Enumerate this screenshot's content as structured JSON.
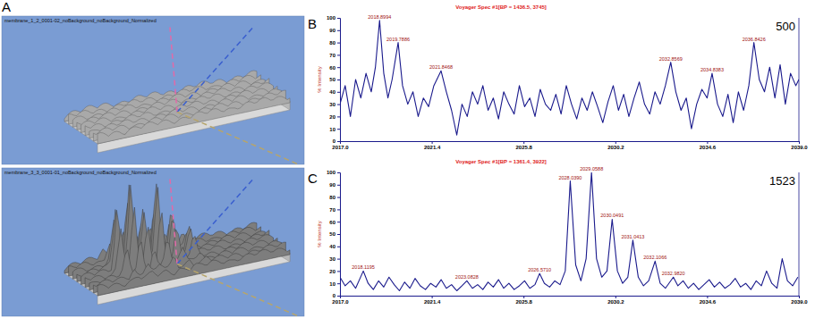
{
  "panel_a": {
    "label": "A",
    "images": [
      {
        "caption": "membrane_1_2_0001-02_noBackground_noBackground_Normalized"
      },
      {
        "caption": "membrane_3_3_0001-01_noBackground_noBackground_Normalized"
      }
    ]
  },
  "chart_data": [
    {
      "type": "line",
      "panel_label": "B",
      "title": "Voyager Spec #1[BP = 1436.5, 3745]",
      "ylabel": "% Intensity",
      "counts_label": 500,
      "color": "#1a1a8c",
      "xlim": [
        2017,
        2039
      ],
      "xticks": [
        {
          "value": 2017,
          "label": "2017.0"
        },
        2021.4,
        2025.8,
        2030.2,
        2034.6,
        {
          "value": 2039,
          "label": "2039.0"
        }
      ],
      "ylim": [
        0,
        100
      ],
      "yticks": [
        0,
        10,
        20,
        30,
        40,
        50,
        60,
        70,
        80,
        90,
        100
      ],
      "x": [
        2017.0,
        2017.25,
        2017.5,
        2017.75,
        2018.0,
        2018.25,
        2018.5,
        2018.7,
        2018.8994,
        2019.1,
        2019.3,
        2019.5,
        2019.7886,
        2020.0,
        2020.25,
        2020.5,
        2020.75,
        2021.0,
        2021.25,
        2021.5,
        2021.8468,
        2022.1,
        2022.35,
        2022.6,
        2022.85,
        2023.1,
        2023.35,
        2023.6,
        2023.85,
        2024.1,
        2024.35,
        2024.6,
        2024.85,
        2025.1,
        2025.35,
        2025.6,
        2025.85,
        2026.1,
        2026.35,
        2026.6,
        2026.85,
        2027.1,
        2027.35,
        2027.6,
        2027.85,
        2028.1,
        2028.35,
        2028.6,
        2028.85,
        2029.1,
        2029.35,
        2029.6,
        2029.85,
        2030.1,
        2030.35,
        2030.6,
        2030.85,
        2031.1,
        2031.35,
        2031.6,
        2031.85,
        2032.1,
        2032.35,
        2032.6,
        2032.8569,
        2033.1,
        2033.35,
        2033.6,
        2033.85,
        2034.1,
        2034.35,
        2034.6,
        2034.8383,
        2035.1,
        2035.35,
        2035.6,
        2035.85,
        2036.1,
        2036.35,
        2036.6,
        2036.8426,
        2037.1,
        2037.35,
        2037.6,
        2037.85,
        2038.1,
        2038.35,
        2038.6,
        2038.85,
        2039.0
      ],
      "values": [
        30,
        45,
        20,
        50,
        35,
        55,
        40,
        60,
        98,
        55,
        35,
        50,
        80,
        45,
        30,
        40,
        20,
        35,
        28,
        45,
        57,
        40,
        25,
        5,
        30,
        20,
        40,
        30,
        45,
        25,
        35,
        18,
        40,
        30,
        22,
        45,
        28,
        35,
        20,
        42,
        30,
        25,
        38,
        22,
        45,
        30,
        18,
        35,
        25,
        40,
        28,
        15,
        32,
        45,
        25,
        38,
        20,
        35,
        48,
        30,
        22,
        40,
        30,
        45,
        64,
        40,
        25,
        35,
        10,
        30,
        42,
        35,
        55,
        30,
        20,
        38,
        15,
        40,
        25,
        45,
        80,
        50,
        40,
        60,
        35,
        62,
        30,
        55,
        45,
        50
      ],
      "annotations": [
        {
          "x": 2018.8994,
          "text": "2018.8994"
        },
        {
          "x": 2019.7886,
          "text": "2019.7886"
        },
        {
          "x": 2021.8468,
          "text": "2021.8468"
        },
        {
          "x": 2032.8569,
          "text": "2032.8569"
        },
        {
          "x": 2034.8383,
          "text": "2034.8383"
        },
        {
          "x": 2036.8426,
          "text": "2036.8426"
        }
      ]
    },
    {
      "type": "line",
      "panel_label": "C",
      "title": "Voyager Spec #1[BP = 1361.4, 3922]",
      "ylabel": "% Intensity",
      "counts_label": 1523,
      "color": "#1a1a8c",
      "xlim": [
        2017,
        2039
      ],
      "xticks": [
        {
          "value": 2017,
          "label": "2017.0"
        },
        2021.4,
        2025.8,
        2030.2,
        2034.6,
        {
          "value": 2039,
          "label": "2039.0"
        }
      ],
      "ylim": [
        0,
        100
      ],
      "yticks": [
        0,
        10,
        20,
        30,
        40,
        50,
        60,
        70,
        80,
        90,
        100
      ],
      "x": [
        2017.0,
        2017.25,
        2017.5,
        2017.75,
        2018.1195,
        2018.35,
        2018.6,
        2018.85,
        2019.1,
        2019.35,
        2019.6,
        2019.85,
        2020.1,
        2020.35,
        2020.6,
        2020.85,
        2021.1,
        2021.35,
        2021.6,
        2021.85,
        2022.1,
        2022.35,
        2022.6,
        2022.85,
        2023.0828,
        2023.35,
        2023.6,
        2023.85,
        2024.1,
        2024.35,
        2024.6,
        2024.85,
        2025.1,
        2025.35,
        2025.6,
        2025.85,
        2026.1,
        2026.35,
        2026.571,
        2026.8,
        2027.05,
        2027.3,
        2027.55,
        2027.8,
        2028.039,
        2028.3,
        2028.55,
        2028.8,
        2029.0588,
        2029.3,
        2029.55,
        2029.8,
        2030.0491,
        2030.3,
        2030.55,
        2030.8,
        2031.0413,
        2031.3,
        2031.55,
        2031.8,
        2032.1066,
        2032.35,
        2032.6,
        2032.982,
        2033.2,
        2033.45,
        2033.7,
        2033.95,
        2034.2,
        2034.45,
        2034.7,
        2034.95,
        2035.2,
        2035.45,
        2035.7,
        2035.95,
        2036.2,
        2036.45,
        2036.7,
        2036.95,
        2037.2,
        2037.45,
        2037.7,
        2037.95,
        2038.2,
        2038.45,
        2038.7,
        2038.95
      ],
      "values": [
        15,
        8,
        12,
        6,
        20,
        10,
        5,
        12,
        7,
        15,
        9,
        4,
        11,
        6,
        14,
        8,
        5,
        10,
        7,
        13,
        6,
        9,
        4,
        8,
        12,
        6,
        9,
        5,
        11,
        7,
        13,
        6,
        10,
        5,
        8,
        12,
        6,
        9,
        18,
        10,
        7,
        12,
        9,
        20,
        93,
        25,
        12,
        30,
        100,
        30,
        15,
        20,
        62,
        20,
        10,
        15,
        45,
        15,
        8,
        12,
        28,
        10,
        6,
        15,
        8,
        12,
        6,
        10,
        5,
        9,
        13,
        7,
        11,
        6,
        9,
        14,
        7,
        10,
        5,
        12,
        8,
        20,
        10,
        6,
        30,
        12,
        8,
        15
      ],
      "annotations": [
        {
          "x": 2018.1195,
          "text": "2018.1195"
        },
        {
          "x": 2023.0828,
          "text": "2023.0828"
        },
        {
          "x": 2026.571,
          "text": "2026.5710"
        },
        {
          "x": 2028.039,
          "text": "2028.0390"
        },
        {
          "x": 2029.0588,
          "text": "2029.0588"
        },
        {
          "x": 2030.0491,
          "text": "2030.0491"
        },
        {
          "x": 2031.0413,
          "text": "2031.0413"
        },
        {
          "x": 2032.1066,
          "text": "2032.1066"
        },
        {
          "x": 2032.982,
          "text": "2032.9820"
        }
      ]
    }
  ]
}
